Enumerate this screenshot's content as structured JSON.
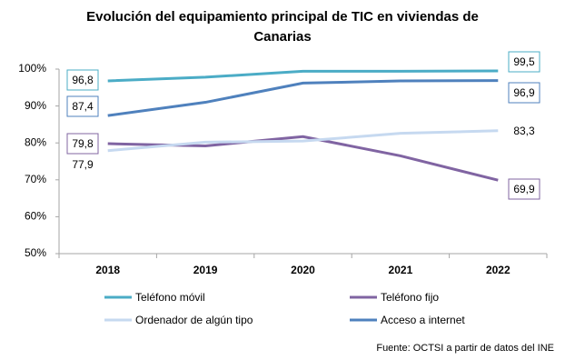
{
  "chart_data": {
    "type": "line",
    "title": "Evolución del equipamiento principal de TIC en viviendas de Canarias",
    "categories": [
      "2018",
      "2019",
      "2020",
      "2021",
      "2022"
    ],
    "series": [
      {
        "name": "Teléfono móvil",
        "color": "#4bacc6",
        "values": [
          96.8,
          97.8,
          99.4,
          99.4,
          99.5
        ],
        "value_labels": [
          "96,8",
          null,
          null,
          null,
          "99,5"
        ]
      },
      {
        "name": "Teléfono fijo",
        "color": "#8064a2",
        "values": [
          79.8,
          79.2,
          81.7,
          76.5,
          69.9
        ],
        "value_labels": [
          "79,8",
          null,
          null,
          null,
          "69,9"
        ]
      },
      {
        "name": "Ordenador de algún tipo",
        "color": "#c6d9f0",
        "values": [
          77.9,
          80.2,
          80.5,
          82.6,
          83.3
        ],
        "value_labels": [
          "77,9",
          null,
          null,
          null,
          "83,3"
        ]
      },
      {
        "name": "Acceso a internet",
        "color": "#4f81bd",
        "values": [
          87.4,
          91.0,
          96.2,
          96.8,
          96.9
        ],
        "value_labels": [
          "87,4",
          null,
          null,
          null,
          "96,9"
        ]
      }
    ],
    "ylim": [
      50,
      100
    ],
    "yticks": [
      {
        "value": 50,
        "label": "50%"
      },
      {
        "value": 60,
        "label": "60%"
      },
      {
        "value": 70,
        "label": "70%"
      },
      {
        "value": 80,
        "label": "80%"
      },
      {
        "value": 90,
        "label": "90%"
      },
      {
        "value": 100,
        "label": "100%"
      }
    ],
    "source": "Fuente:  OCTSI a partir de datos del INE"
  }
}
